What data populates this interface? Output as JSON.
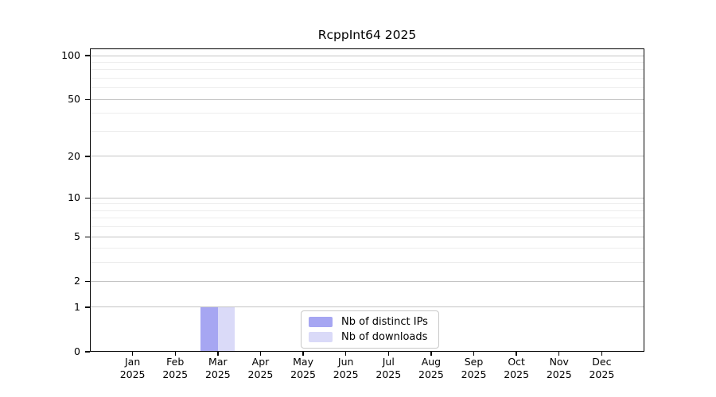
{
  "chart_data": {
    "type": "bar",
    "title": "RcppInt64 2025",
    "categories": [
      "Jan",
      "Feb",
      "Mar",
      "Apr",
      "May",
      "Jun",
      "Jul",
      "Aug",
      "Sep",
      "Oct",
      "Nov",
      "Dec"
    ],
    "year_label": "2025",
    "series": [
      {
        "name": "Nb of distinct IPs",
        "color": "#a6a6f2",
        "values": [
          0,
          0,
          1,
          0,
          0,
          0,
          0,
          0,
          0,
          0,
          0,
          0
        ]
      },
      {
        "name": "Nb of downloads",
        "color": "#dadaf8",
        "values": [
          0,
          0,
          1,
          0,
          0,
          0,
          0,
          0,
          0,
          0,
          0,
          0
        ]
      }
    ],
    "y_scale": "log1p",
    "ylim": [
      0,
      112
    ],
    "yticks": [
      0,
      1,
      2,
      5,
      10,
      20,
      50,
      100
    ],
    "minor_gridlines": [
      3,
      4,
      6,
      7,
      8,
      9,
      30,
      40,
      60,
      70,
      80,
      90
    ],
    "legend_position": "inside-bottom-center",
    "grid": true,
    "colors": {
      "major_gridline": "#c4c4c4",
      "minor_gridline": "#ededed",
      "axis_frame": "#000000",
      "background": "#ffffff",
      "legend_border": "#c9c9c9",
      "text": "#000000"
    }
  }
}
